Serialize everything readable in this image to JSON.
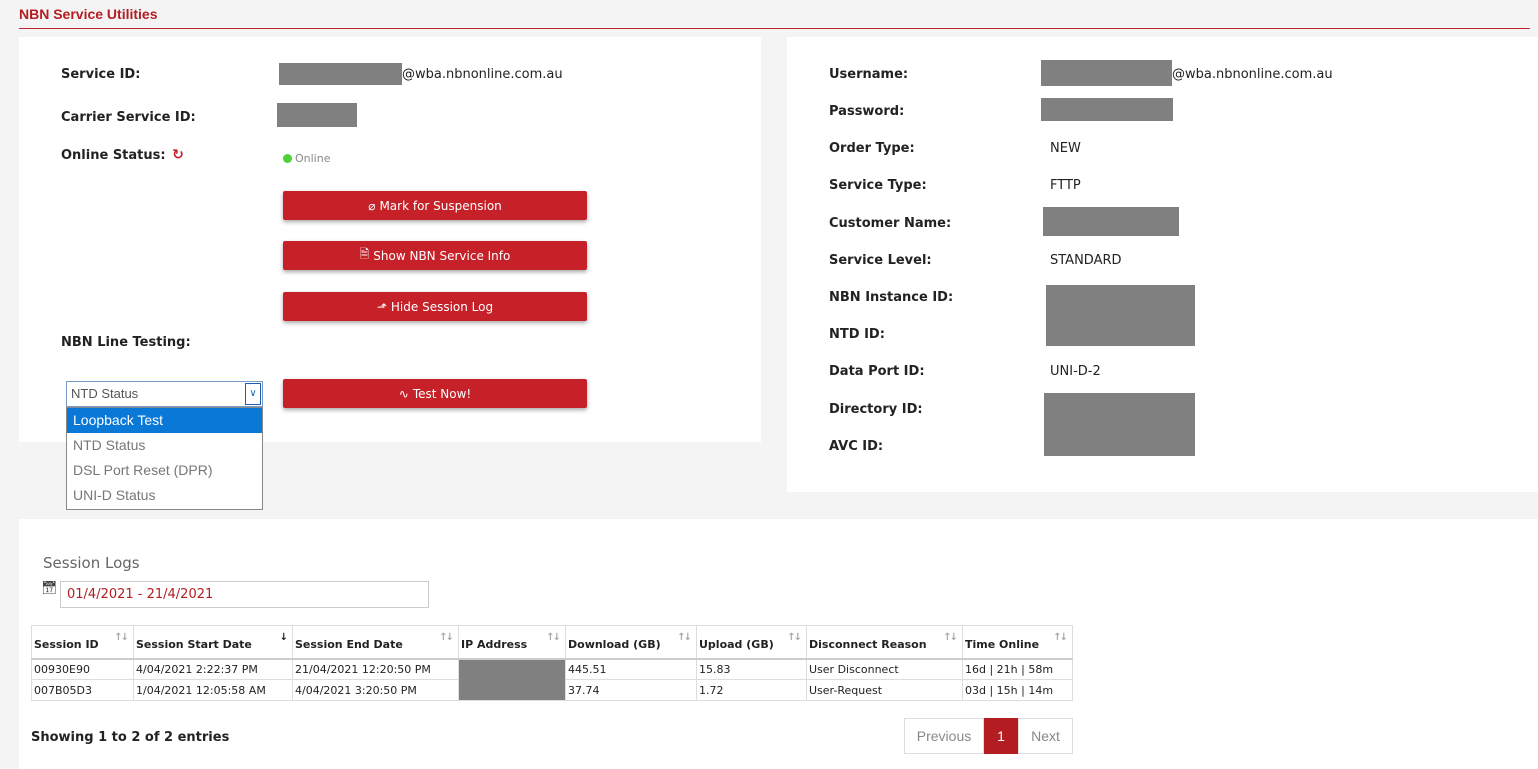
{
  "page_title": "NBN Service Utilities",
  "left": {
    "service_id_label": "Service ID:",
    "service_id_suffix": "@wba.nbnonline.com.au",
    "carrier_id_label": "Carrier Service ID:",
    "online_status_label": "Online Status:",
    "online_status_value": "Online",
    "buttons": {
      "suspend": "Mark for Suspension",
      "show_info": "Show NBN Service Info",
      "hide_log": "Hide Session Log",
      "test_now": "Test Now!"
    },
    "line_testing_label": "NBN Line Testing:",
    "test_select_value": "NTD Status",
    "test_options": [
      "Loopback Test",
      "NTD Status",
      "DSL Port Reset (DPR)",
      "UNI-D Status"
    ]
  },
  "right": {
    "username_label": "Username:",
    "username_suffix": "@wba.nbnonline.com.au",
    "password_label": "Password:",
    "order_type_label": "Order Type:",
    "order_type_value": "NEW",
    "service_type_label": "Service Type:",
    "service_type_value": "FTTP",
    "customer_name_label": "Customer Name:",
    "service_level_label": "Service Level:",
    "service_level_value": "STANDARD",
    "nbn_instance_label": "NBN Instance ID:",
    "ntd_id_label": "NTD ID:",
    "data_port_label": "Data Port ID:",
    "data_port_value": "UNI-D-2",
    "directory_id_label": "Directory ID:",
    "avc_id_label": "AVC ID:"
  },
  "session_logs": {
    "title": "Session Logs",
    "date_range": "01/4/2021 - 21/4/2021",
    "columns": [
      "Session ID",
      "Session Start Date",
      "Session End Date",
      "IP Address",
      "Download (GB)",
      "Upload (GB)",
      "Disconnect Reason",
      "Time Online"
    ],
    "rows": [
      [
        "00930E90",
        "4/04/2021 2:22:37 PM",
        "21/04/2021 12:20:50 PM",
        "",
        "445.51",
        "15.83",
        "User Disconnect",
        "16d | 21h | 58m"
      ],
      [
        "007B05D3",
        "1/04/2021 12:05:58 AM",
        "4/04/2021 3:20:50 PM",
        "",
        "37.74",
        "1.72",
        "User-Request",
        "03d | 15h | 14m"
      ]
    ],
    "showing": "Showing 1 to 2 of 2 entries",
    "pager": {
      "previous": "Previous",
      "current": "1",
      "next": "Next"
    }
  }
}
